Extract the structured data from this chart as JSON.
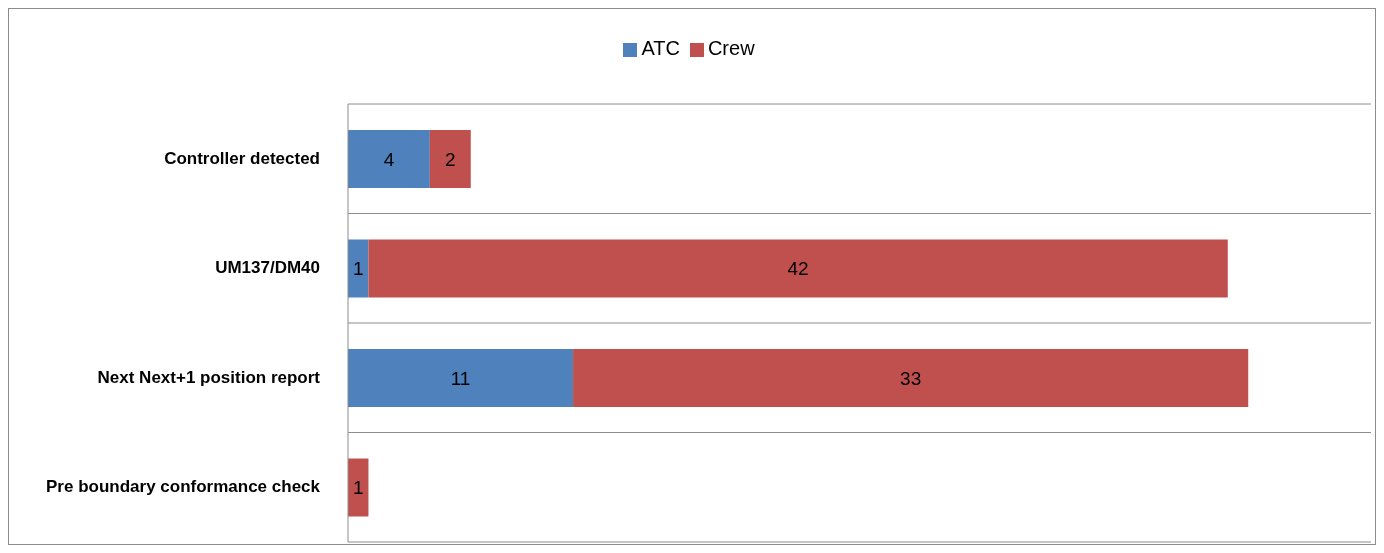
{
  "chart_data": {
    "type": "bar",
    "orientation": "horizontal",
    "stacked": true,
    "categories": [
      "Controller detected",
      "UM137/DM40",
      "Next Next+1 position report",
      "Pre boundary conformance check"
    ],
    "series": [
      {
        "name": "ATC",
        "color": "#4f81bd",
        "values": [
          4,
          1,
          11,
          null
        ]
      },
      {
        "name": "Crew",
        "color": "#c0504d",
        "values": [
          2,
          42,
          33,
          1
        ]
      }
    ],
    "xlim": [
      0,
      50
    ],
    "tick_labels": "y",
    "data_labels": true,
    "grid": "y",
    "legend": "top"
  }
}
